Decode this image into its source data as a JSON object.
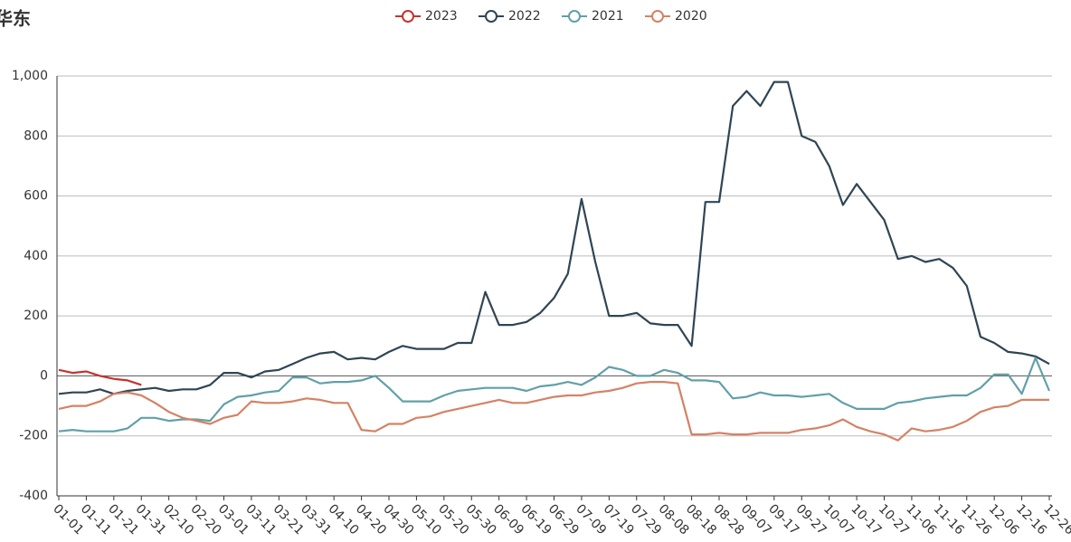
{
  "chart_data": {
    "type": "line",
    "title": "华东",
    "categories": [
      "01-01",
      null,
      "01-11",
      null,
      "01-21",
      null,
      "01-31",
      null,
      "02-10",
      null,
      "02-20",
      null,
      "03-01",
      null,
      "03-11",
      null,
      "03-21",
      null,
      "03-31",
      null,
      "04-10",
      null,
      "04-20",
      null,
      "04-30",
      null,
      "05-10",
      null,
      "05-20",
      null,
      "05-30",
      null,
      "06-09",
      null,
      "06-19",
      null,
      "06-29",
      null,
      "07-09",
      null,
      "07-19",
      null,
      "07-29",
      null,
      "08-08",
      null,
      "08-18",
      null,
      "08-28",
      null,
      "09-07",
      null,
      "09-17",
      null,
      "09-27",
      null,
      "10-07",
      null,
      "10-17",
      null,
      "10-27",
      null,
      "11-06",
      null,
      "11-16",
      null,
      "11-26",
      null,
      "12-06",
      null,
      "12-16",
      null,
      "12-26"
    ],
    "series": [
      {
        "name": "2023",
        "color": "#c23531",
        "values": [
          20,
          10,
          15,
          0,
          -10,
          -15,
          -30,
          null,
          null,
          null,
          null,
          null,
          null,
          null,
          null,
          null,
          null,
          null,
          null,
          null,
          null,
          null,
          null,
          null,
          null,
          null,
          null,
          null,
          null,
          null,
          null,
          null,
          null,
          null,
          null,
          null,
          null,
          null,
          null,
          null,
          null,
          null,
          null,
          null,
          null,
          null,
          null,
          null,
          null,
          null,
          null,
          null,
          null,
          null,
          null,
          null,
          null,
          null,
          null,
          null,
          null,
          null,
          null,
          null,
          null,
          null,
          null,
          null,
          null,
          null,
          null,
          null,
          null
        ]
      },
      {
        "name": "2022",
        "color": "#2f4554",
        "values": [
          -60,
          -55,
          -55,
          -45,
          -60,
          -50,
          -45,
          -40,
          -50,
          -45,
          -45,
          -30,
          10,
          10,
          -5,
          15,
          20,
          40,
          60,
          75,
          80,
          55,
          60,
          55,
          80,
          100,
          90,
          90,
          90,
          110,
          110,
          280,
          170,
          170,
          180,
          210,
          260,
          340,
          590,
          380,
          200,
          200,
          210,
          175,
          170,
          170,
          100,
          580,
          580,
          900,
          950,
          900,
          980,
          980,
          800,
          780,
          700,
          570,
          640,
          580,
          520,
          390,
          400,
          380,
          390,
          360,
          300,
          130,
          110,
          80,
          75,
          65,
          40
        ]
      },
      {
        "name": "2021",
        "color": "#61a0a8",
        "values": [
          -185,
          -180,
          -185,
          -185,
          -185,
          -175,
          -140,
          -140,
          -150,
          -145,
          -145,
          -150,
          -95,
          -70,
          -65,
          -55,
          -50,
          -5,
          -5,
          -25,
          -20,
          -20,
          -15,
          0,
          -40,
          -85,
          -85,
          -85,
          -65,
          -50,
          -45,
          -40,
          -40,
          -40,
          -50,
          -35,
          -30,
          -20,
          -30,
          -5,
          30,
          20,
          0,
          0,
          20,
          10,
          -15,
          -15,
          -20,
          -75,
          -70,
          -55,
          -65,
          -65,
          -70,
          -65,
          -60,
          -90,
          -110,
          -110,
          -110,
          -90,
          -85,
          -75,
          -70,
          -65,
          -65,
          -40,
          5,
          5,
          -60,
          60,
          -50
        ]
      },
      {
        "name": "2020",
        "color": "#d48265",
        "values": [
          -110,
          -100,
          -100,
          -85,
          -60,
          -55,
          -65,
          -90,
          -120,
          -140,
          -150,
          -160,
          -140,
          -130,
          -85,
          -90,
          -90,
          -85,
          -75,
          -80,
          -90,
          -90,
          -180,
          -185,
          -160,
          -160,
          -140,
          -135,
          -120,
          -110,
          -100,
          -90,
          -80,
          -90,
          -90,
          -80,
          -70,
          -65,
          -65,
          -55,
          -50,
          -40,
          -25,
          -20,
          -20,
          -25,
          -195,
          -195,
          -190,
          -195,
          -195,
          -190,
          -190,
          -190,
          -180,
          -175,
          -165,
          -145,
          -170,
          -185,
          -195,
          -215,
          -175,
          -185,
          -180,
          -170,
          -150,
          -120,
          -105,
          -100,
          -80,
          -80,
          -80
        ]
      }
    ],
    "ylim": [
      -400,
      1000
    ],
    "yticks": [
      -400,
      -200,
      0,
      200,
      400,
      600,
      800,
      {
        "value": 1000,
        "label": "1,000"
      }
    ],
    "grid": true
  }
}
